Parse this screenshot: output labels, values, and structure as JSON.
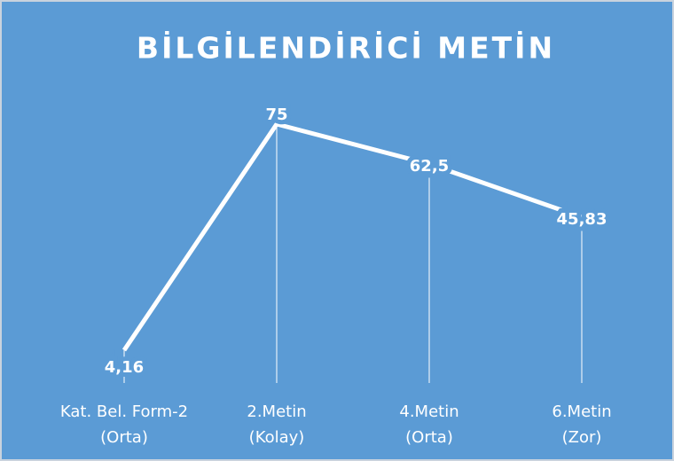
{
  "chart_data": {
    "type": "line",
    "title": "BİLGİLENDİRİCİ METİN",
    "categories": [
      [
        "Kat. Bel. Form-2",
        "(Orta)"
      ],
      [
        "2.Metin",
        "(Kolay)"
      ],
      [
        "4.Metin",
        "(Orta)"
      ],
      [
        "6.Metin",
        "(Zor)"
      ]
    ],
    "values": [
      4.16,
      75,
      62.5,
      45.83
    ],
    "value_labels": [
      "4,16",
      "75",
      "62,5",
      "45,83"
    ],
    "color": "#ffffff",
    "ylim": [
      0,
      80
    ]
  }
}
